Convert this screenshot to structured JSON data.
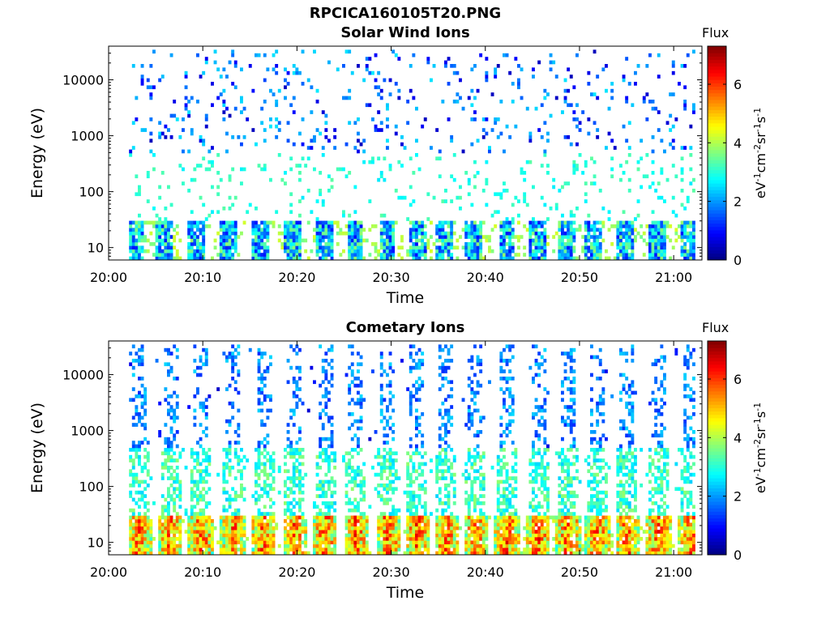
{
  "figure_title": "RPCICA160105T20.PNG",
  "colorbar": {
    "title": "Flux",
    "unit_label": "eV",
    "ticks": [
      "0",
      "2",
      "4",
      "6"
    ],
    "range": [
      0,
      7.3
    ],
    "colormap": "jet"
  },
  "chart_data": [
    {
      "type": "heatmap",
      "title": "Solar Wind Ions",
      "xlabel": "Time",
      "ylabel": "Energy (eV)",
      "xticks": [
        "20:00",
        "20:10",
        "20:20",
        "20:30",
        "20:40",
        "20:50",
        "21:00"
      ],
      "xlim": [
        "20:00",
        "21:03"
      ],
      "yscale": "log",
      "yticks": [
        "10",
        "100",
        "1000",
        "10000"
      ],
      "ylim": [
        6,
        40000
      ],
      "grid": false,
      "bursts_at_minutes": [
        2.8,
        5.9,
        9.4,
        12.8,
        16.2,
        19.6,
        23.0,
        26.2,
        29.6,
        32.9,
        35.6,
        38.8,
        42.3,
        45.5,
        48.7,
        51.5,
        54.9,
        58.2,
        61.6
      ],
      "dominant_flux_range": [
        1,
        4
      ]
    },
    {
      "type": "heatmap",
      "title": "Cometary Ions",
      "xlabel": "Time",
      "ylabel": "Energy (eV)",
      "xticks": [
        "20:00",
        "20:10",
        "20:20",
        "20:30",
        "20:40",
        "20:50",
        "21:00"
      ],
      "xlim": [
        "20:00",
        "21:03"
      ],
      "yscale": "log",
      "yticks": [
        "10",
        "100",
        "1000",
        "10000"
      ],
      "ylim": [
        6,
        40000
      ],
      "grid": false,
      "bursts_at_minutes": [
        3.2,
        6.6,
        9.8,
        13.2,
        16.5,
        19.8,
        23.0,
        26.3,
        29.7,
        32.8,
        35.9,
        39.0,
        42.3,
        45.6,
        48.8,
        51.9,
        55.1,
        58.4,
        61.7
      ],
      "dominant_flux_range": [
        2,
        6.5
      ]
    }
  ]
}
